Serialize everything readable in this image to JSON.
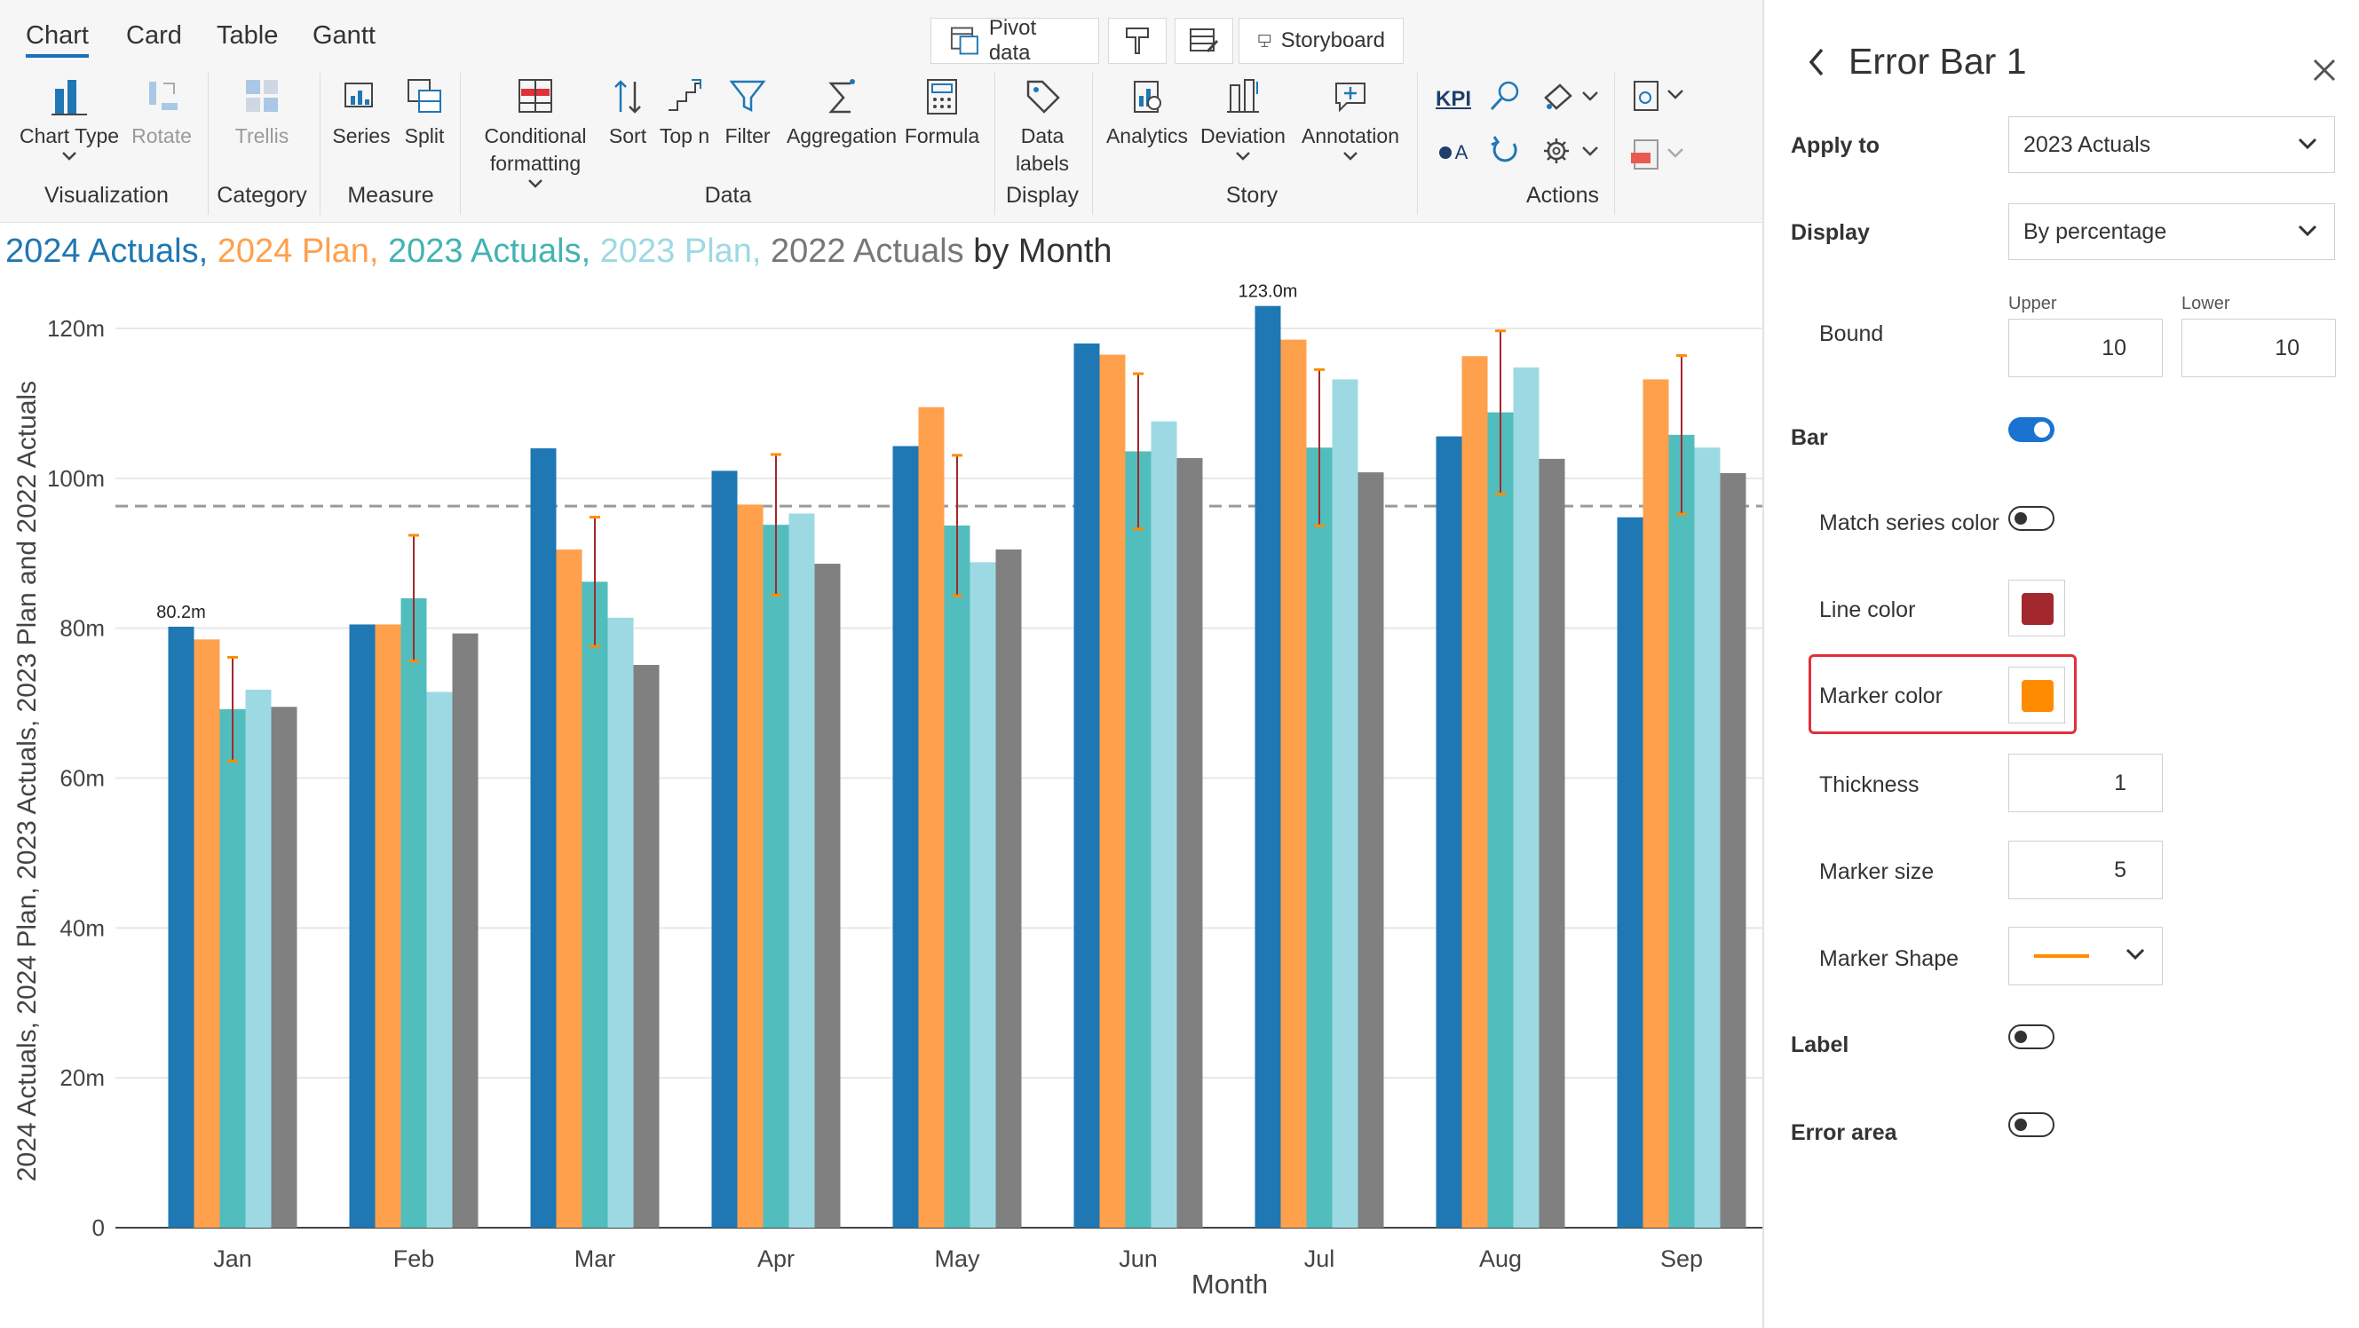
{
  "tabs": [
    "Chart",
    "Card",
    "Table",
    "Gantt"
  ],
  "top_buttons": {
    "pivot": "Pivot  data",
    "storyboard": "Storyboard"
  },
  "ribbon": {
    "chart_type": "Chart Type",
    "rotate": "Rotate",
    "trellis": "Trellis",
    "series": "Series",
    "split": "Split",
    "conditional_1": "Conditional",
    "conditional_2": "formatting",
    "sort": "Sort",
    "topn": "Top n",
    "filter": "Filter",
    "aggregation": "Aggregation",
    "formula": "Formula",
    "data_labels_1": "Data",
    "data_labels_2": "labels",
    "analytics": "Analytics",
    "deviation": "Deviation",
    "annotation": "Annotation",
    "kpi": "KPI",
    "text_a": "A",
    "groups": {
      "visualization": "Visualization",
      "category": "Category",
      "measure": "Measure",
      "data": "Data",
      "display": "Display",
      "story": "Story",
      "actions": "Actions"
    }
  },
  "chart_title": {
    "s1": "2024 Actuals,",
    "s2": "2024 Plan,",
    "s3": "2023 Actuals,",
    "s4": "2023 Plan,",
    "s5": "2022 Actuals",
    "suffix": "by Month"
  },
  "chart_data": {
    "type": "bar",
    "categories": [
      "Jan",
      "Feb",
      "Mar",
      "Apr",
      "May",
      "Jun",
      "Jul",
      "Aug",
      "Sep"
    ],
    "series": [
      {
        "name": "2024 Actuals",
        "color": "#1f77b4",
        "values": [
          80.2,
          80.5,
          104,
          101,
          104.3,
          118,
          123.0,
          105.6,
          94.8
        ]
      },
      {
        "name": "2024 Plan",
        "color": "#ffa04d",
        "values": [
          78.5,
          80.5,
          90.5,
          96.5,
          109.5,
          116.5,
          118.5,
          116.3,
          113.2
        ]
      },
      {
        "name": "2023 Actuals",
        "color": "#52bdbd",
        "values": [
          69.2,
          84,
          86.2,
          93.8,
          93.7,
          103.6,
          104.1,
          108.8,
          105.8
        ]
      },
      {
        "name": "2023 Plan",
        "color": "#9dd9e3",
        "values": [
          71.8,
          71.5,
          81.4,
          95.3,
          88.8,
          107.6,
          113.2,
          114.8,
          104.1
        ]
      },
      {
        "name": "2022 Actuals",
        "color": "#808080",
        "values": [
          69.5,
          79.3,
          75.1,
          88.6,
          90.5,
          102.7,
          100.8,
          102.6,
          100.7
        ]
      }
    ],
    "error_bar": {
      "series": "2023 Actuals",
      "upper_pct": 10,
      "lower_pct": 10
    },
    "reference_line": 96.3,
    "data_labels": [
      {
        "category": "Jan",
        "text": "80.2m"
      },
      {
        "category": "Jul",
        "text": "123.0m"
      }
    ],
    "yticks": [
      "0",
      "20m",
      "40m",
      "60m",
      "80m",
      "100m",
      "120m"
    ],
    "ylim": [
      0,
      120
    ],
    "xlabel": "Month",
    "ylabel": "2024 Actuals, 2024 Plan, 2023 Actuals, 2023 Plan and 2022 Actuals",
    "grid": true
  },
  "panel": {
    "title": "Error Bar 1",
    "apply_to_label": "Apply to",
    "apply_to_value": "2023 Actuals",
    "display_label": "Display",
    "display_value": "By percentage",
    "bound_label": "Bound",
    "upper_label": "Upper",
    "lower_label": "Lower",
    "upper_value": "10",
    "lower_value": "10",
    "bar_label": "Bar",
    "bar_on": true,
    "match_label": "Match series color",
    "match_on": false,
    "line_color_label": "Line color",
    "line_color": "#a3282d",
    "marker_color_label": "Marker color",
    "marker_color": "#ff8c00",
    "thickness_label": "Thickness",
    "thickness_value": "1",
    "marker_size_label": "Marker size",
    "marker_size_value": "5",
    "marker_shape_label": "Marker Shape",
    "label_label": "Label",
    "label_on": false,
    "error_area_label": "Error area",
    "error_area_on": false
  }
}
